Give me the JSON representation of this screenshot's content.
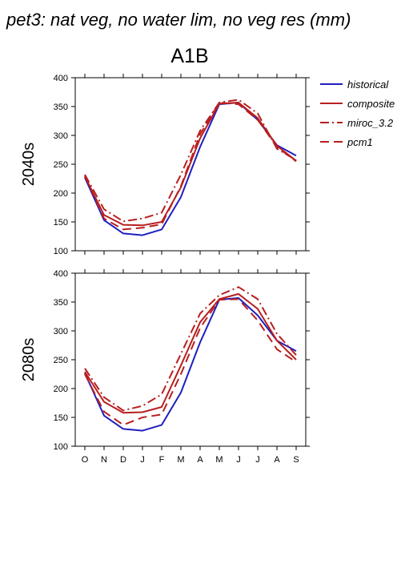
{
  "title": "pet3: nat veg, no water lim, no veg res (mm)",
  "scenario": "A1B",
  "colors": {
    "historical": "#1f1fbf",
    "model": "#b81f1f"
  },
  "chart_data": [
    {
      "type": "line",
      "row_label": "2040s",
      "categories": [
        "O",
        "N",
        "D",
        "J",
        "F",
        "M",
        "A",
        "M",
        "J",
        "J",
        "A",
        "S"
      ],
      "ylim": [
        100,
        400
      ],
      "yticks": [
        100,
        150,
        200,
        250,
        300,
        350,
        400
      ],
      "series": [
        {
          "name": "historical",
          "style": "solid",
          "color": "#1f1fbf",
          "values": [
            227,
            153,
            130,
            127,
            137,
            193,
            280,
            354,
            357,
            327,
            283,
            265
          ]
        },
        {
          "name": "composite",
          "style": "solid",
          "color": "#b81f1f",
          "values": [
            229,
            162,
            145,
            144,
            150,
            210,
            295,
            355,
            357,
            330,
            282,
            256
          ]
        },
        {
          "name": "miroc_3.2",
          "style": "dashdot",
          "color": "#b81f1f",
          "values": [
            232,
            172,
            151,
            156,
            166,
            232,
            308,
            357,
            362,
            338,
            277,
            257
          ]
        },
        {
          "name": "pcm1",
          "style": "dashed",
          "color": "#b81f1f",
          "values": [
            230,
            156,
            137,
            140,
            146,
            212,
            302,
            357,
            354,
            327,
            280,
            255
          ]
        }
      ]
    },
    {
      "type": "line",
      "row_label": "2080s",
      "categories": [
        "O",
        "N",
        "D",
        "J",
        "F",
        "M",
        "A",
        "M",
        "J",
        "J",
        "A",
        "S"
      ],
      "ylim": [
        100,
        400
      ],
      "yticks": [
        100,
        150,
        200,
        250,
        300,
        350,
        400
      ],
      "series": [
        {
          "name": "historical",
          "style": "solid",
          "color": "#1f1fbf",
          "values": [
            227,
            153,
            130,
            127,
            137,
            193,
            280,
            354,
            357,
            327,
            283,
            265
          ]
        },
        {
          "name": "composite",
          "style": "solid",
          "color": "#b81f1f",
          "values": [
            229,
            177,
            158,
            159,
            168,
            240,
            315,
            355,
            364,
            338,
            283,
            250
          ]
        },
        {
          "name": "miroc_3.2",
          "style": "dashdot",
          "color": "#b81f1f",
          "values": [
            235,
            185,
            162,
            170,
            190,
            260,
            330,
            362,
            376,
            355,
            295,
            258
          ]
        },
        {
          "name": "pcm1",
          "style": "dashed",
          "color": "#b81f1f",
          "values": [
            225,
            160,
            137,
            150,
            155,
            225,
            305,
            354,
            355,
            318,
            268,
            246
          ]
        }
      ]
    }
  ]
}
